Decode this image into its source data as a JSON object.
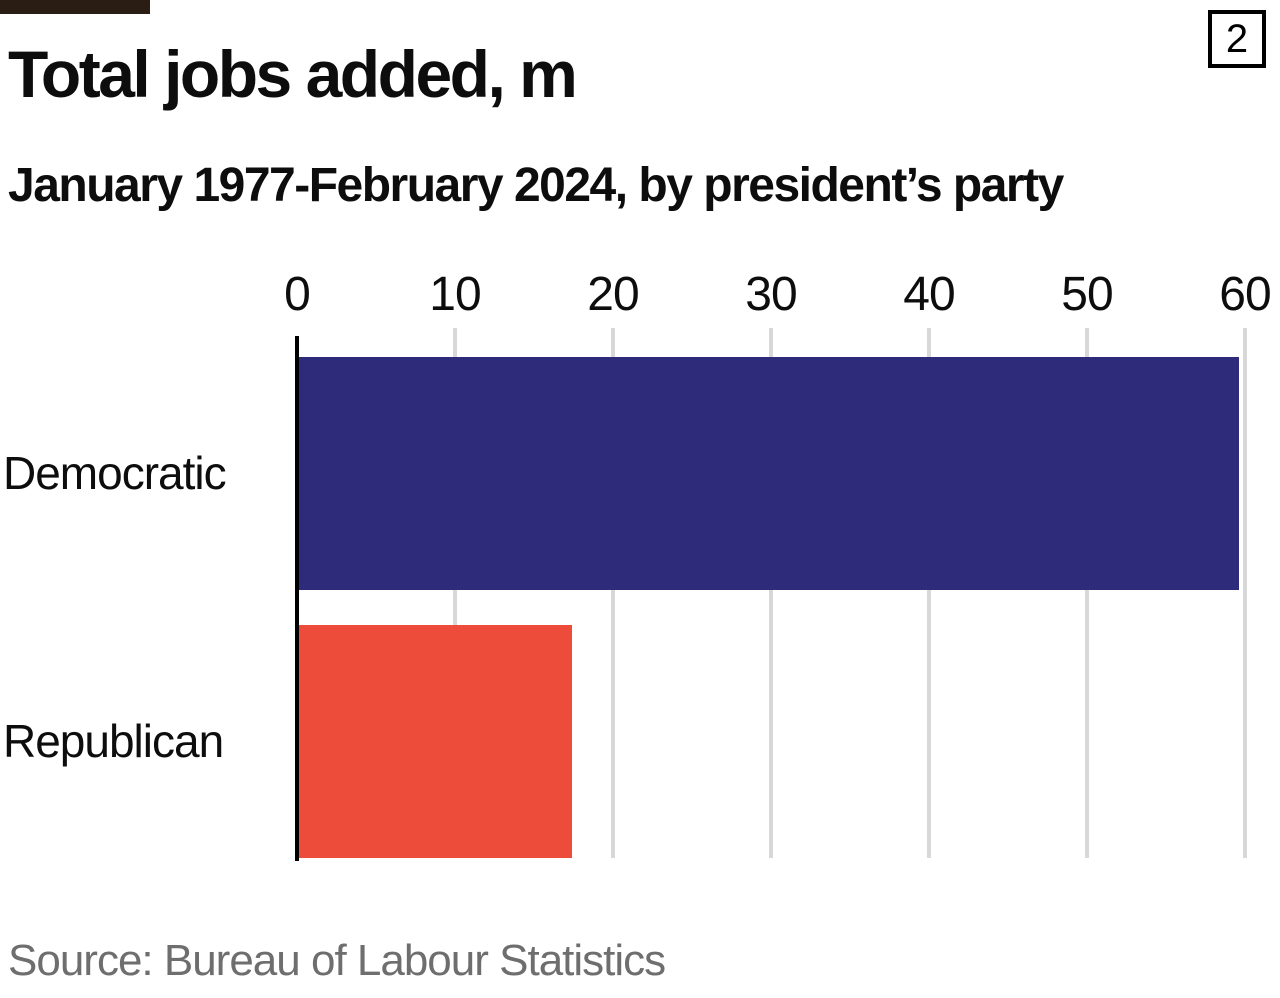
{
  "badge": {
    "label": "2"
  },
  "header": {
    "title": "Total jobs added, m",
    "subtitle": "January 1977-February 2024, by president’s party"
  },
  "source_note": "Source: Bureau of Labour Statistics",
  "chart_data": {
    "type": "bar",
    "orientation": "horizontal",
    "title": "Total jobs added, m",
    "subtitle": "January 1977-February 2024, by president’s party",
    "categories": [
      "Democratic",
      "Republican"
    ],
    "values": [
      59.6,
      17.4
    ],
    "xlim": [
      0,
      60
    ],
    "x_ticks": [
      0,
      10,
      20,
      30,
      40,
      50,
      60
    ],
    "grid": "vertical-light-gray",
    "legend": false,
    "colors": {
      "bars": [
        "#2e2b7b",
        "#ee4c3b"
      ],
      "gridline": "#d8d8d8",
      "axis": "#000000",
      "source_text": "#6e6e6e"
    },
    "source": "Source: Bureau of Labour Statistics"
  }
}
